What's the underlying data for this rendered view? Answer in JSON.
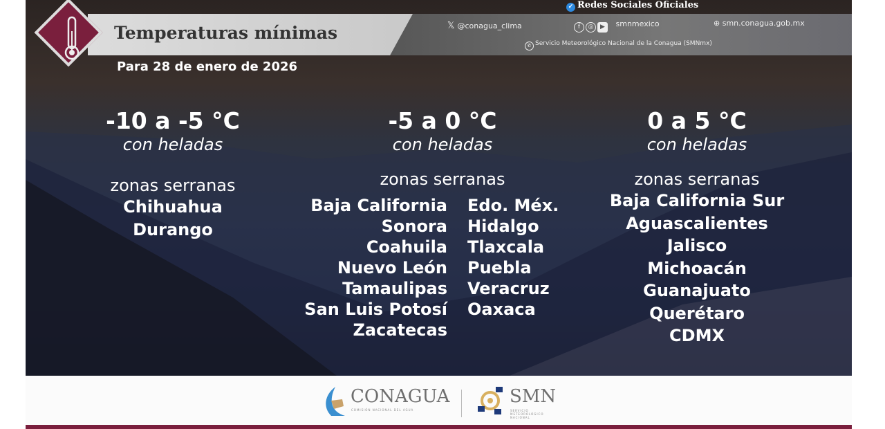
{
  "header": {
    "title": "Temperaturas mínimas",
    "date": "Para 28 de enero de 2026",
    "icon": "thermometer-icon"
  },
  "social": {
    "heading": "Redes Sociales Oficiales",
    "x_handle": "@conagua_clima",
    "handle": "smnmexico",
    "website": "smn.conagua.gob.mx",
    "whatsapp": "Servicio Meteorológico Nacional de la Conagua (SMNmx)"
  },
  "columns": [
    {
      "range": "-10 a -5 °C",
      "note": "con heladas",
      "zone": "zonas serranas",
      "states": [
        "Chihuahua",
        "Durango"
      ]
    },
    {
      "range": "-5 a 0 °C",
      "note": "con heladas",
      "zone": "zonas serranas",
      "states_left": [
        "Baja California",
        "Sonora",
        "Coahuila",
        "Nuevo León",
        "Tamaulipas",
        "San Luis Potosí",
        "Zacatecas"
      ],
      "states_right": [
        "Edo. Méx.",
        "Hidalgo",
        "Tlaxcala",
        "Puebla",
        "Veracruz",
        "Oaxaca"
      ]
    },
    {
      "range": "0 a 5 °C",
      "note": "con heladas",
      "zone": "zonas serranas",
      "states": [
        "Baja California Sur",
        "Aguascalientes",
        "Jalisco",
        "Michoacán",
        "Guanajuato",
        "Querétaro",
        "CDMX"
      ]
    }
  ],
  "footer": {
    "conagua": "CONAGUA",
    "conagua_sub": "COMISIÓN NACIONAL DEL AGUA",
    "smn": "SMN",
    "smn_sub": "SERVICIO METEOROLÓGICO NACIONAL"
  },
  "colors": {
    "brand": "#7a1f3d",
    "text": "#ffffff"
  }
}
